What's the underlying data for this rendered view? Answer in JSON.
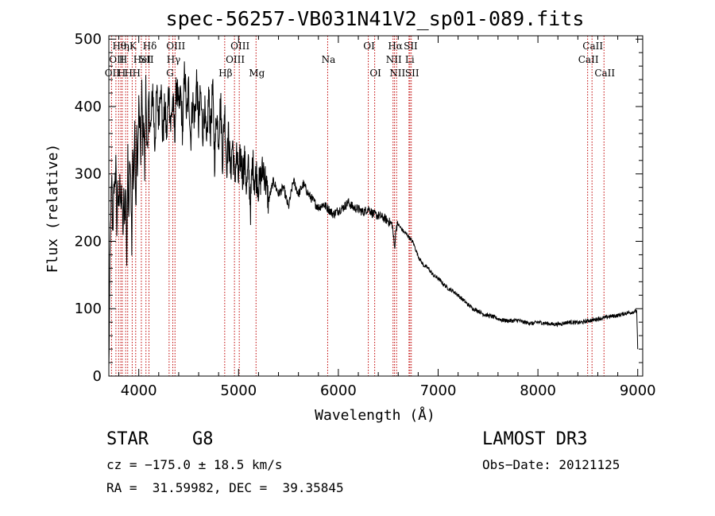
{
  "chart_data": {
    "type": "line",
    "title": "spec-56257-VB031N41V2_sp01-089.fits",
    "xlabel": "Wavelength (Å)",
    "ylabel": "Flux (relative)",
    "xlim": [
      3700,
      9050
    ],
    "ylim": [
      0,
      505
    ],
    "xticks": [
      4000,
      5000,
      6000,
      7000,
      8000,
      9000
    ],
    "yticks": [
      0,
      100,
      200,
      300,
      400,
      500
    ],
    "series": [
      {
        "name": "spectrum",
        "x": [
          3700,
          3710,
          3720,
          3730,
          3740,
          3750,
          3760,
          3770,
          3780,
          3790,
          3800,
          3810,
          3820,
          3830,
          3840,
          3850,
          3860,
          3870,
          3880,
          3890,
          3900,
          3910,
          3920,
          3930,
          3940,
          3950,
          3960,
          3970,
          3980,
          3990,
          4000,
          4010,
          4020,
          4030,
          4040,
          4050,
          4060,
          4070,
          4080,
          4090,
          4100,
          4120,
          4140,
          4160,
          4180,
          4200,
          4220,
          4240,
          4260,
          4280,
          4300,
          4320,
          4340,
          4360,
          4380,
          4400,
          4420,
          4440,
          4460,
          4480,
          4500,
          4520,
          4540,
          4560,
          4580,
          4600,
          4620,
          4640,
          4660,
          4680,
          4700,
          4720,
          4740,
          4760,
          4780,
          4800,
          4820,
          4840,
          4860,
          4880,
          4900,
          4920,
          4940,
          4960,
          4980,
          5000,
          5020,
          5040,
          5060,
          5080,
          5100,
          5120,
          5140,
          5160,
          5180,
          5200,
          5250,
          5300,
          5350,
          5400,
          5450,
          5500,
          5550,
          5600,
          5650,
          5700,
          5750,
          5800,
          5850,
          5900,
          5950,
          6000,
          6050,
          6100,
          6150,
          6200,
          6250,
          6300,
          6350,
          6400,
          6450,
          6500,
          6540,
          6563,
          6580,
          6600,
          6650,
          6700,
          6750,
          6800,
          6850,
          6900,
          6950,
          7000,
          7050,
          7100,
          7150,
          7200,
          7250,
          7300,
          7350,
          7400,
          7450,
          7500,
          7550,
          7600,
          7650,
          7700,
          7750,
          7800,
          7850,
          7900,
          7950,
          8000,
          8050,
          8100,
          8150,
          8200,
          8250,
          8300,
          8350,
          8400,
          8450,
          8500,
          8550,
          8600,
          8650,
          8700,
          8750,
          8800,
          8850,
          8900,
          8950,
          8990,
          9000
        ],
        "y": [
          5,
          150,
          250,
          280,
          200,
          300,
          260,
          330,
          220,
          270,
          250,
          310,
          230,
          290,
          200,
          260,
          240,
          280,
          170,
          320,
          250,
          340,
          300,
          180,
          330,
          290,
          370,
          230,
          350,
          310,
          400,
          370,
          330,
          420,
          350,
          390,
          300,
          430,
          370,
          320,
          410,
          360,
          430,
          340,
          420,
          380,
          445,
          350,
          400,
          355,
          430,
          370,
          410,
          360,
          440,
          390,
          420,
          360,
          460,
          380,
          430,
          350,
          410,
          380,
          440,
          370,
          420,
          360,
          400,
          330,
          420,
          360,
          430,
          320,
          395,
          350,
          410,
          320,
          400,
          310,
          360,
          300,
          350,
          290,
          330,
          290,
          330,
          300,
          320,
          280,
          310,
          250,
          320,
          290,
          300,
          280,
          310,
          260,
          290,
          270,
          280,
          250,
          290,
          270,
          285,
          270,
          260,
          250,
          255,
          248,
          240,
          246,
          250,
          258,
          250,
          248,
          243,
          249,
          240,
          238,
          235,
          230,
          225,
          190,
          222,
          225,
          215,
          208,
          198,
          178,
          165,
          160,
          150,
          145,
          137,
          130,
          126,
          120,
          113,
          106,
          100,
          97,
          92,
          90,
          88,
          85,
          83,
          82,
          82,
          83,
          80,
          79,
          78,
          80,
          79,
          78,
          77,
          77,
          78,
          80,
          80,
          79,
          80,
          82,
          83,
          85,
          86,
          88,
          89,
          90,
          92,
          94,
          95,
          97,
          40
        ]
      }
    ],
    "lines": [
      {
        "w": 3727,
        "row": 2,
        "label": "OII"
      },
      {
        "w": 3771,
        "row": 1,
        "label": "OII"
      },
      {
        "w": 3798,
        "row": 0,
        "label": "Hθ"
      },
      {
        "w": 3820,
        "row": 2,
        "label": "H"
      },
      {
        "w": 3835,
        "row": 1,
        "label": "H"
      },
      {
        "w": 3869,
        "row": 0,
        "label": "η"
      },
      {
        "w": 3889,
        "row": 2,
        "label": "H"
      },
      {
        "w": 3934,
        "row": 0,
        "label": "K"
      },
      {
        "w": 3969,
        "row": 2,
        "label": "H"
      },
      {
        "w": 4026,
        "row": 1,
        "label": "HeI"
      },
      {
        "w": 4072,
        "row": 1,
        "label": "SII"
      },
      {
        "w": 4102,
        "row": 0,
        "label": "Hδ"
      },
      {
        "w": 4304,
        "row": 2,
        "label": "G"
      },
      {
        "w": 4341,
        "row": 1,
        "label": "Hγ"
      },
      {
        "w": 4363,
        "row": 0,
        "label": "OIII"
      },
      {
        "w": 4861,
        "row": 2,
        "label": "Hβ"
      },
      {
        "w": 4959,
        "row": 1,
        "label": "OIII"
      },
      {
        "w": 5007,
        "row": 0,
        "label": "OIII"
      },
      {
        "w": 5175,
        "row": 2,
        "label": "Mg"
      },
      {
        "w": 5893,
        "row": 1,
        "label": "Na"
      },
      {
        "w": 6300,
        "row": 0,
        "label": "OI"
      },
      {
        "w": 6364,
        "row": 2,
        "label": "OI"
      },
      {
        "w": 6548,
        "row": 1,
        "label": "NII"
      },
      {
        "w": 6563,
        "row": 0,
        "label": "Hα"
      },
      {
        "w": 6584,
        "row": 2,
        "label": "NII"
      },
      {
        "w": 6708,
        "row": 1,
        "label": "Li"
      },
      {
        "w": 6717,
        "row": 0,
        "label": "SII"
      },
      {
        "w": 6731,
        "row": 2,
        "label": "SII"
      },
      {
        "w": 8498,
        "row": 1,
        "label": "CaII"
      },
      {
        "w": 8542,
        "row": 0,
        "label": "CaII"
      },
      {
        "w": 8662,
        "row": 2,
        "label": "CaII"
      }
    ]
  },
  "info": {
    "object_class": "STAR",
    "subclass": "G8",
    "survey": "LAMOST DR3",
    "cz": "cz = −175.0 ± 18.5 km/s",
    "obs_date": "Obs−Date: 20121125",
    "coords": "RA =  31.59982, DEC =  39.35845"
  },
  "colors": {
    "spectrum": "#000000",
    "line_markers": "#c00000"
  }
}
